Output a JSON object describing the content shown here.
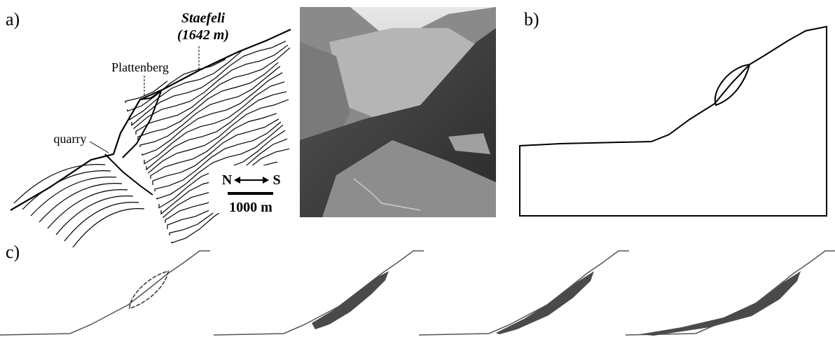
{
  "panels": {
    "a": {
      "label": "a)",
      "title": "Staefeli",
      "elevation": "(1642 m)",
      "labels": [
        "Plattenberg",
        "quarry"
      ],
      "compass": {
        "north": "N",
        "south": "S"
      },
      "scale": "1000 m"
    },
    "b": {
      "label": "b)"
    },
    "c": {
      "label": "c)"
    }
  }
}
